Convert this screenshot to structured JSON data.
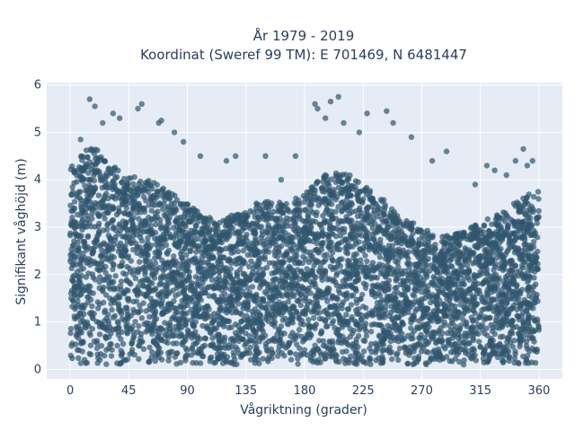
{
  "chart_data": {
    "type": "scatter",
    "title_line1": "År 1979 - 2019",
    "title_line2": "Koordinat (Sweref 99 TM): E 701469, N 6481447",
    "xlabel": "Vågriktning (grader)",
    "ylabel": "Signifikant våghöjd (m)",
    "xlim": [
      -18,
      378
    ],
    "ylim": [
      -0.2,
      6.05
    ],
    "xticks": [
      0,
      45,
      90,
      135,
      180,
      225,
      270,
      315,
      360
    ],
    "yticks": [
      0,
      1,
      2,
      3,
      4,
      5,
      6
    ],
    "grid": true,
    "color": "#31556e",
    "dense_band": [
      [
        0,
        4.3
      ],
      [
        10,
        4.6
      ],
      [
        20,
        4.7
      ],
      [
        30,
        4.4
      ],
      [
        45,
        4.1
      ],
      [
        60,
        4.0
      ],
      [
        75,
        3.8
      ],
      [
        90,
        3.5
      ],
      [
        105,
        3.2
      ],
      [
        120,
        3.2
      ],
      [
        135,
        3.4
      ],
      [
        150,
        3.6
      ],
      [
        165,
        3.5
      ],
      [
        180,
        3.7
      ],
      [
        195,
        4.1
      ],
      [
        210,
        4.2
      ],
      [
        225,
        3.9
      ],
      [
        240,
        3.6
      ],
      [
        255,
        3.2
      ],
      [
        270,
        3.0
      ],
      [
        285,
        2.8
      ],
      [
        300,
        2.9
      ],
      [
        315,
        3.1
      ],
      [
        330,
        3.3
      ],
      [
        345,
        3.6
      ],
      [
        360,
        3.8
      ]
    ],
    "outliers": [
      [
        15,
        5.7
      ],
      [
        19,
        5.55
      ],
      [
        25,
        5.2
      ],
      [
        33,
        5.4
      ],
      [
        38,
        5.3
      ],
      [
        55,
        5.6
      ],
      [
        52,
        5.5
      ],
      [
        68,
        5.2
      ],
      [
        70,
        5.25
      ],
      [
        80,
        5.0
      ],
      [
        87,
        4.8
      ],
      [
        100,
        4.5
      ],
      [
        120,
        4.4
      ],
      [
        127,
        4.5
      ],
      [
        150,
        4.5
      ],
      [
        162,
        4.0
      ],
      [
        173,
        4.5
      ],
      [
        188,
        5.6
      ],
      [
        190,
        5.5
      ],
      [
        196,
        5.3
      ],
      [
        200,
        5.65
      ],
      [
        206,
        5.75
      ],
      [
        210,
        5.2
      ],
      [
        222,
        5.0
      ],
      [
        228,
        5.4
      ],
      [
        243,
        5.45
      ],
      [
        248,
        5.2
      ],
      [
        262,
        4.9
      ],
      [
        278,
        4.4
      ],
      [
        289,
        4.6
      ],
      [
        311,
        3.9
      ],
      [
        320,
        4.3
      ],
      [
        326,
        4.2
      ],
      [
        335,
        4.1
      ],
      [
        342,
        4.4
      ],
      [
        348,
        4.65
      ],
      [
        351,
        4.3
      ],
      [
        355,
        4.4
      ],
      [
        8,
        4.85
      ]
    ]
  }
}
